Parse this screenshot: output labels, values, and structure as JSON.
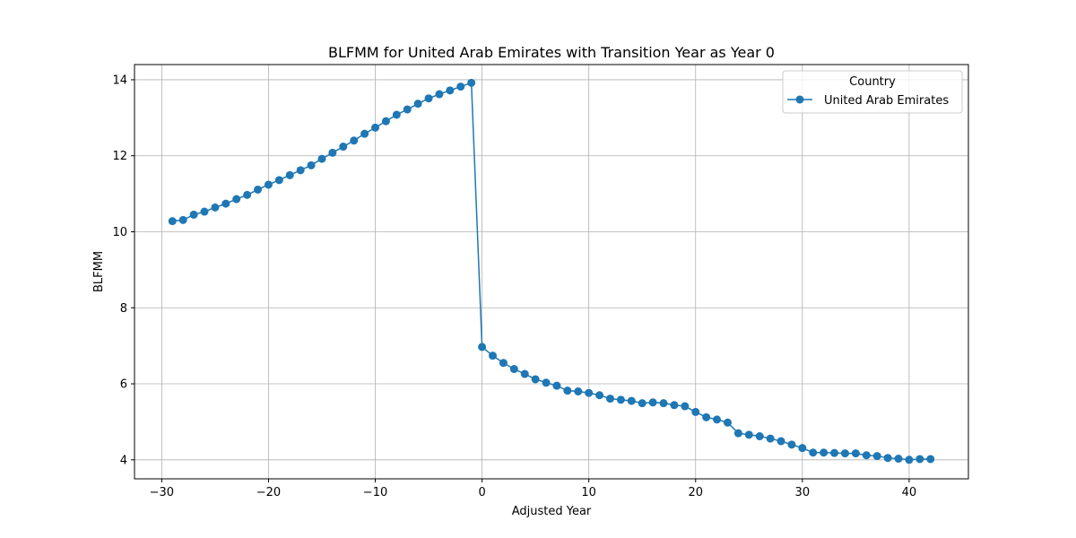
{
  "chart_data": {
    "type": "line",
    "title": "BLFMM for United Arab Emirates with Transition Year as Year 0",
    "xlabel": "Adjusted Year",
    "ylabel": "BLFMM",
    "xlim": [
      -32.55,
      45.55
    ],
    "ylim": [
      3.5,
      14.4
    ],
    "xticks": [
      -30,
      -20,
      -10,
      0,
      10,
      20,
      30,
      40
    ],
    "yticks": [
      4,
      6,
      8,
      10,
      12,
      14
    ],
    "xtick_labels": [
      "−30",
      "−20",
      "−10",
      "0",
      "10",
      "20",
      "30",
      "40"
    ],
    "ytick_labels": [
      "4",
      "6",
      "8",
      "10",
      "12",
      "14"
    ],
    "grid": true,
    "legend": {
      "title": "Country",
      "placement": "top-right"
    },
    "series": [
      {
        "name": "United Arab Emirates",
        "color": "#1f77b4",
        "marker": "circle",
        "x": [
          -29,
          -28,
          -27,
          -26,
          -25,
          -24,
          -23,
          -22,
          -21,
          -20,
          -19,
          -18,
          -17,
          -16,
          -15,
          -14,
          -13,
          -12,
          -11,
          -10,
          -9,
          -8,
          -7,
          -6,
          -5,
          -4,
          -3,
          -2,
          -1,
          0,
          1,
          2,
          3,
          4,
          5,
          6,
          7,
          8,
          9,
          10,
          11,
          12,
          13,
          14,
          15,
          16,
          17,
          18,
          19,
          20,
          21,
          22,
          23,
          24,
          25,
          26,
          27,
          28,
          29,
          30,
          31,
          32,
          33,
          34,
          35,
          36,
          37,
          38,
          39,
          40,
          41,
          42
        ],
        "y": [
          10.28,
          10.31,
          10.45,
          10.53,
          10.64,
          10.74,
          10.86,
          10.97,
          11.11,
          11.24,
          11.36,
          11.49,
          11.62,
          11.75,
          11.92,
          12.08,
          12.24,
          12.4,
          12.58,
          12.74,
          12.91,
          13.08,
          13.22,
          13.37,
          13.51,
          13.62,
          13.72,
          13.82,
          13.92,
          6.97,
          6.74,
          6.55,
          6.39,
          6.26,
          6.12,
          6.03,
          5.95,
          5.82,
          5.8,
          5.76,
          5.7,
          5.61,
          5.58,
          5.55,
          5.49,
          5.51,
          5.49,
          5.44,
          5.41,
          5.26,
          5.12,
          5.06,
          4.98,
          4.7,
          4.66,
          4.62,
          4.56,
          4.49,
          4.4,
          4.31,
          4.19,
          4.19,
          4.18,
          4.17,
          4.17,
          4.12,
          4.1,
          4.05,
          4.03,
          4.0,
          4.02,
          4.02
        ]
      }
    ]
  }
}
